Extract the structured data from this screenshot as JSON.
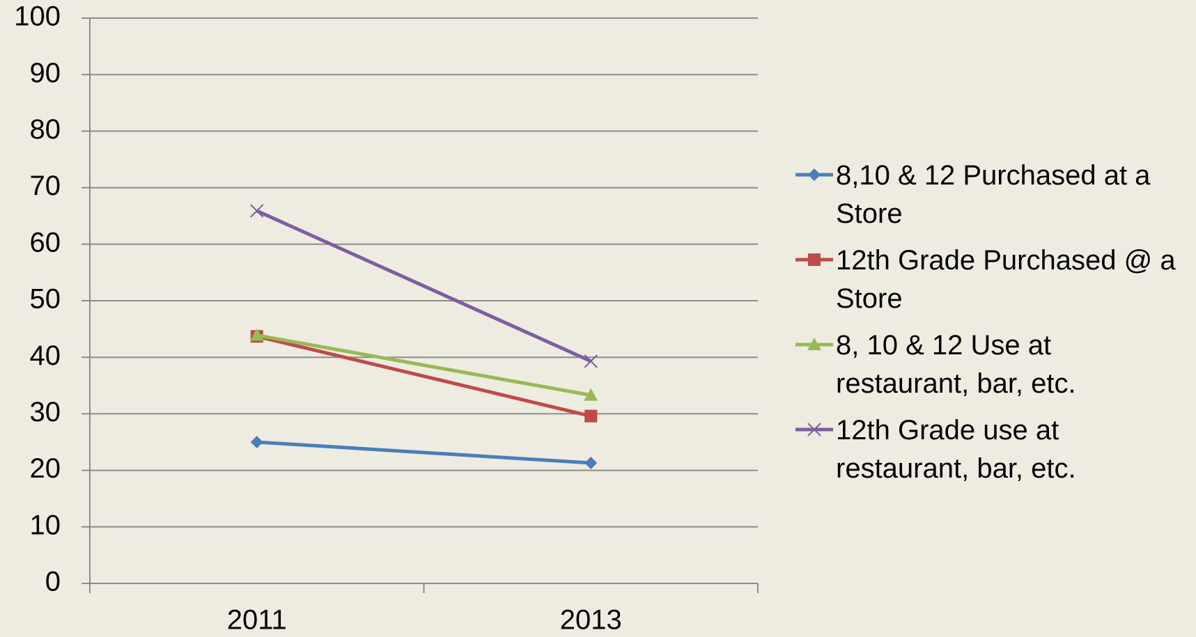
{
  "chart_data": {
    "type": "line",
    "categories": [
      "2011",
      "2013"
    ],
    "series": [
      {
        "name": "8,10 & 12 Purchased at a Store",
        "color": "#4a7ebb",
        "marker": "diamond",
        "values": [
          25.0,
          21.3
        ]
      },
      {
        "name": "12th Grade Purchased @ a Store",
        "color": "#be4b48",
        "marker": "square",
        "values": [
          43.7,
          29.6
        ]
      },
      {
        "name": "8, 10 & 12 Use at restaurant, bar, etc.",
        "color": "#98b954",
        "marker": "triangle",
        "values": [
          43.9,
          33.3
        ]
      },
      {
        "name": "12th Grade use at restaurant, bar, etc.",
        "color": "#7d5fa0",
        "marker": "x",
        "values": [
          65.9,
          39.3
        ]
      }
    ],
    "ylim": [
      0,
      100
    ],
    "yticks": [
      0,
      10,
      20,
      30,
      40,
      50,
      60,
      70,
      80,
      90,
      100
    ],
    "grid": true,
    "legend": "right"
  }
}
